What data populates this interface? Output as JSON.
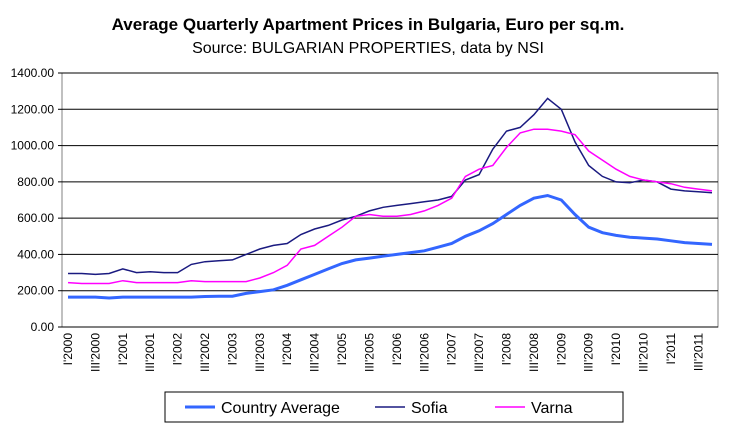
{
  "chart_data": {
    "type": "line",
    "title": "Average Quarterly Apartment Prices in Bulgaria, Euro per sq.m.",
    "subtitle": "Source: BULGARIAN PROPERTIES, data by NSI",
    "categories": [
      "I'2000",
      null,
      "III'2000",
      null,
      "I'2001",
      null,
      "III'2001",
      null,
      "I'2002",
      null,
      "III'2002",
      null,
      "I'2003",
      null,
      "III'2003",
      null,
      "I'2004",
      null,
      "III'2004",
      null,
      "I'2005",
      null,
      "III'2005",
      null,
      "I'2006",
      null,
      "III'2006",
      null,
      "I'2007",
      null,
      "III'2007",
      null,
      "I'2008",
      null,
      "III'2008",
      null,
      "I'2009",
      null,
      "III'2009",
      null,
      "I'2010",
      null,
      "III'2010",
      null,
      "I'2011",
      null,
      "III'2011",
      null
    ],
    "series": [
      {
        "name": "Country Average",
        "color": "#3366ff",
        "values": [
          165,
          165,
          165,
          160,
          165,
          165,
          165,
          165,
          165,
          165,
          168,
          170,
          170,
          185,
          195,
          205,
          230,
          260,
          290,
          320,
          350,
          370,
          380,
          390,
          400,
          410,
          420,
          440,
          460,
          500,
          530,
          570,
          620,
          670,
          710,
          725,
          700,
          620,
          550,
          520,
          505,
          495,
          490,
          485,
          475,
          465,
          460,
          455
        ]
      },
      {
        "name": "Sofia",
        "color": "#1a1a80",
        "values": [
          295,
          295,
          290,
          295,
          320,
          300,
          305,
          300,
          300,
          345,
          360,
          365,
          370,
          400,
          430,
          450,
          460,
          510,
          540,
          560,
          590,
          610,
          640,
          660,
          670,
          680,
          690,
          700,
          720,
          810,
          840,
          980,
          1080,
          1100,
          1170,
          1260,
          1200,
          1020,
          890,
          830,
          800,
          795,
          810,
          800,
          760,
          750,
          745,
          740
        ]
      },
      {
        "name": "Varna",
        "color": "#ff00ff",
        "values": [
          245,
          240,
          240,
          240,
          255,
          245,
          245,
          245,
          245,
          255,
          250,
          250,
          250,
          250,
          270,
          300,
          340,
          430,
          450,
          500,
          550,
          610,
          620,
          610,
          610,
          620,
          640,
          670,
          710,
          830,
          870,
          890,
          990,
          1070,
          1090,
          1090,
          1080,
          1060,
          970,
          920,
          870,
          830,
          810,
          800,
          790,
          770,
          760,
          750
        ]
      }
    ],
    "ylim": [
      0,
      1400
    ],
    "yticks": [
      {
        "value": 0,
        "label": "0.00"
      },
      {
        "value": 200,
        "label": "200.00"
      },
      {
        "value": 400,
        "label": "400.00"
      },
      {
        "value": 600,
        "label": "600.00"
      },
      {
        "value": 800,
        "label": "800.00"
      },
      {
        "value": 1000,
        "label": "1000.00"
      },
      {
        "value": 1200,
        "label": "1200.00"
      },
      {
        "value": 1400,
        "label": "1400.00"
      }
    ],
    "grid": true,
    "legend": "bottom"
  }
}
